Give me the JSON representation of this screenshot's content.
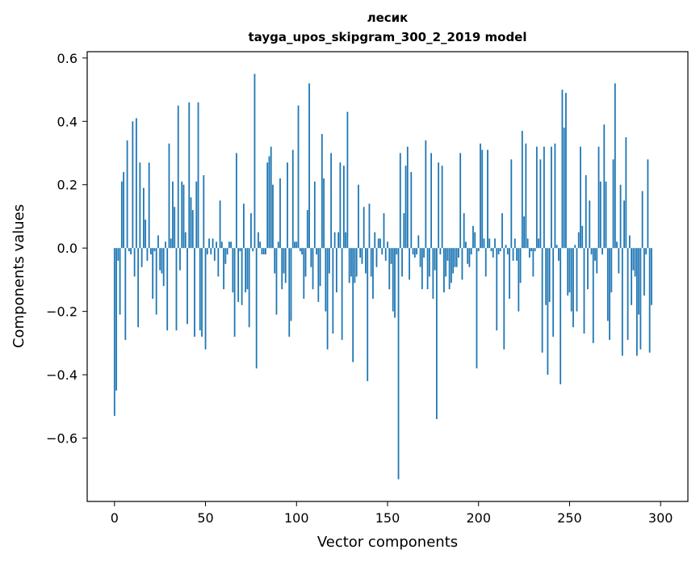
{
  "chart_data": {
    "type": "bar",
    "title_line1": "лесик",
    "title_line2": "tayga_upos_skipgram_300_2_2019 model",
    "xlabel": "Vector components",
    "ylabel": "Components values",
    "xlim": [
      -15,
      315
    ],
    "ylim": [
      -0.8,
      0.62
    ],
    "xticks": [
      0,
      50,
      100,
      150,
      200,
      250,
      300
    ],
    "xtick_labels": [
      "0",
      "50",
      "100",
      "150",
      "200",
      "250",
      "300"
    ],
    "yticks": [
      -0.6,
      -0.4,
      -0.2,
      0.0,
      0.2,
      0.4,
      0.6
    ],
    "ytick_labels": [
      "−0.6",
      "−0.4",
      "−0.2",
      "0.0",
      "0.2",
      "0.4",
      "0.6"
    ],
    "color": "#1f77b4",
    "values": [
      -0.53,
      -0.45,
      -0.04,
      -0.21,
      0.21,
      0.24,
      -0.29,
      0.34,
      -0.01,
      -0.02,
      0.4,
      -0.09,
      0.41,
      -0.25,
      0.27,
      -0.06,
      0.19,
      0.09,
      -0.04,
      0.27,
      -0.02,
      -0.16,
      -0.01,
      -0.21,
      0.04,
      -0.07,
      -0.08,
      -0.12,
      0.02,
      -0.26,
      0.33,
      0.03,
      0.21,
      0.13,
      -0.26,
      0.45,
      -0.07,
      0.21,
      0.2,
      0.05,
      -0.24,
      0.46,
      0.16,
      0.12,
      -0.28,
      0.21,
      0.46,
      -0.26,
      -0.28,
      0.23,
      -0.32,
      -0.02,
      0.03,
      -0.02,
      0.03,
      -0.04,
      0.02,
      -0.09,
      0.15,
      0.02,
      -0.13,
      -0.05,
      -0.02,
      0.02,
      0.02,
      -0.14,
      -0.28,
      0.3,
      -0.17,
      -0.01,
      -0.18,
      0.14,
      -0.14,
      -0.13,
      -0.25,
      0.11,
      -0.01,
      0.55,
      -0.38,
      0.05,
      0.02,
      -0.02,
      -0.02,
      -0.02,
      0.27,
      0.29,
      0.32,
      0.2,
      -0.08,
      -0.21,
      0.02,
      0.22,
      -0.13,
      -0.08,
      -0.11,
      0.27,
      -0.28,
      -0.23,
      0.31,
      0.02,
      0.02,
      0.45,
      -0.01,
      -0.02,
      -0.16,
      -0.09,
      0.12,
      0.52,
      -0.06,
      -0.13,
      0.21,
      -0.02,
      -0.17,
      -0.12,
      0.36,
      0.22,
      -0.2,
      -0.32,
      -0.08,
      0.3,
      -0.27,
      0.05,
      -0.14,
      0.05,
      0.27,
      -0.29,
      0.26,
      0.05,
      0.43,
      -0.11,
      -0.09,
      -0.36,
      -0.11,
      -0.09,
      0.2,
      -0.03,
      -0.05,
      0.13,
      -0.08,
      -0.42,
      0.14,
      -0.09,
      -0.16,
      0.05,
      -0.06,
      0.03,
      0.03,
      -0.02,
      0.11,
      -0.04,
      0.02,
      -0.13,
      -0.05,
      -0.2,
      -0.22,
      -0.02,
      -0.73,
      0.3,
      -0.09,
      0.11,
      0.26,
      0.32,
      -0.1,
      0.24,
      -0.02,
      -0.03,
      -0.02,
      0.04,
      -0.06,
      -0.13,
      -0.03,
      0.34,
      -0.13,
      -0.09,
      0.3,
      -0.16,
      -0.07,
      -0.54,
      0.27,
      -0.02,
      0.26,
      -0.14,
      -0.09,
      -0.04,
      -0.13,
      -0.11,
      -0.08,
      -0.06,
      -0.06,
      -0.03,
      0.3,
      -0.1,
      0.11,
      0.02,
      -0.05,
      -0.06,
      -0.02,
      0.07,
      0.05,
      -0.38,
      -0.01,
      0.33,
      0.31,
      0.03,
      -0.09,
      0.31,
      0.03,
      -0.01,
      -0.03,
      0.03,
      -0.26,
      -0.02,
      -0.01,
      0.11,
      -0.32,
      0.01,
      -0.02,
      -0.16,
      0.28,
      -0.04,
      0.03,
      -0.04,
      -0.2,
      -0.11,
      0.37,
      0.1,
      0.33,
      0.03,
      -0.03,
      -0.01,
      -0.09,
      -0.01,
      0.32,
      0.03,
      0.28,
      -0.33,
      0.32,
      -0.18,
      -0.4,
      -0.17,
      0.32,
      -0.28,
      0.33,
      0.01,
      -0.04,
      -0.43,
      0.5,
      0.38,
      0.49,
      -0.15,
      -0.14,
      -0.2,
      -0.25,
      0.01,
      -0.2,
      0.05,
      0.32,
      0.07,
      -0.27,
      0.23,
      -0.13,
      0.15,
      -0.02,
      -0.3,
      -0.04,
      -0.08,
      0.32,
      0.21,
      -0.02,
      0.39,
      0.21,
      -0.23,
      -0.29,
      -0.14,
      0.28,
      0.52,
      0.02,
      -0.08,
      0.2,
      -0.34,
      0.15,
      0.35,
      -0.29,
      0.04,
      -0.18,
      -0.07,
      -0.09,
      -0.34,
      -0.21,
      -0.32,
      0.18,
      -0.15,
      -0.02,
      0.28,
      -0.33,
      -0.18
    ]
  }
}
